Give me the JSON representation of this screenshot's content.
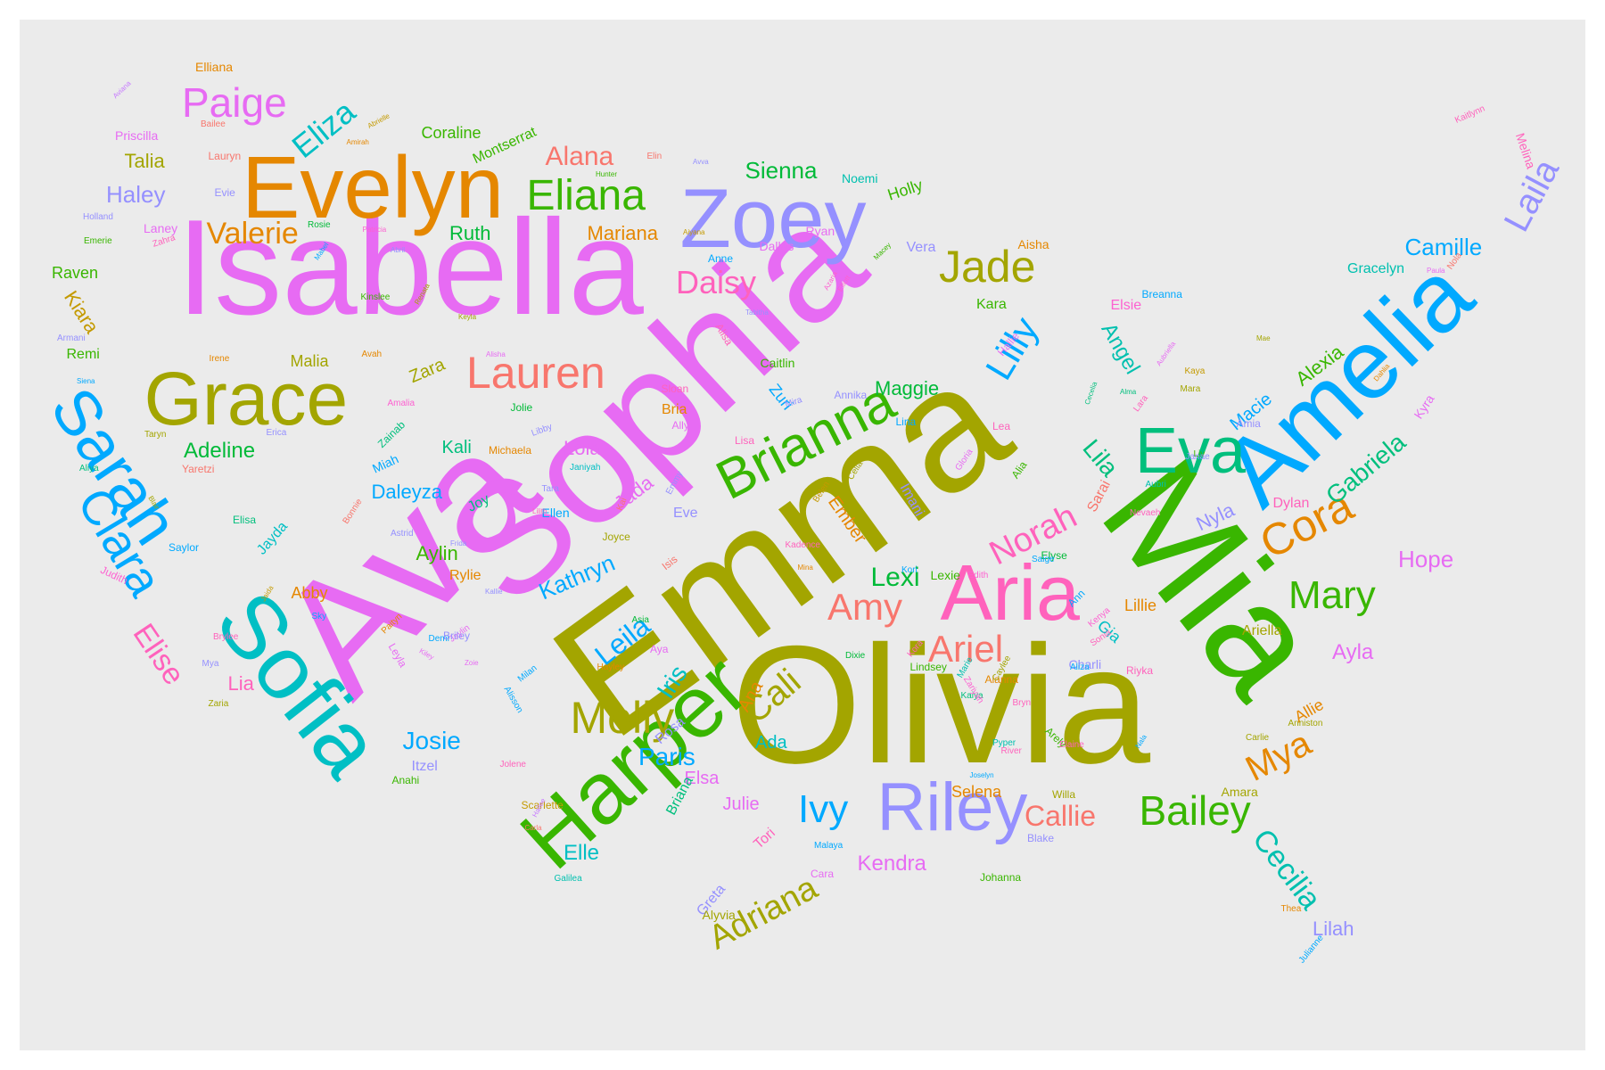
{
  "colors": {
    "panel": "#ebebeb",
    "palette": {
      "pink": "#f8766d",
      "orange": "#e58700",
      "olive": "#a3a500",
      "green": "#39b600",
      "teal": "#00bf7d",
      "cyan": "#00bfc4",
      "blue": "#00b0f6",
      "lavender": "#9590ff",
      "magenta": "#e76bf3",
      "hotpink": "#ff62bc",
      "gold": "#c49a00",
      "emerald": "#00ba38",
      "aqua": "#00c0af",
      "sky": "#00a9ff",
      "purple": "#c77cff",
      "rose": "#fd61d1"
    }
  },
  "words": [
    {
      "text": "Olivia",
      "color": "olive"
    },
    {
      "text": "Emma",
      "color": "olive"
    },
    {
      "text": "Ava",
      "color": "magenta"
    },
    {
      "text": "Sophia",
      "color": "magenta"
    },
    {
      "text": "Isabella",
      "color": "magenta"
    },
    {
      "text": "Mia",
      "color": "green"
    },
    {
      "text": "Amelia",
      "color": "sky"
    },
    {
      "text": "Harper",
      "color": "green"
    },
    {
      "text": "Evelyn",
      "color": "orange"
    },
    {
      "text": "Sofia",
      "color": "cyan"
    },
    {
      "text": "Zoey",
      "color": "lavender"
    },
    {
      "text": "Aria",
      "color": "hotpink"
    },
    {
      "text": "Grace",
      "color": "olive"
    },
    {
      "text": "Riley",
      "color": "lavender"
    },
    {
      "text": "Sarah",
      "color": "sky"
    },
    {
      "text": "Eva",
      "color": "teal"
    },
    {
      "text": "Brianna",
      "color": "green"
    },
    {
      "text": "Lauren",
      "color": "pink"
    },
    {
      "text": "Eliana",
      "color": "green"
    },
    {
      "text": "Jade",
      "color": "olive"
    },
    {
      "text": "Clara",
      "color": "sky"
    },
    {
      "text": "Molly",
      "color": "olive"
    },
    {
      "text": "Bailey",
      "color": "green"
    },
    {
      "text": "Cora",
      "color": "orange"
    },
    {
      "text": "Laila",
      "color": "lavender"
    },
    {
      "text": "Mary",
      "color": "green"
    },
    {
      "text": "Norah",
      "color": "hotpink"
    },
    {
      "text": "Paige",
      "color": "magenta"
    },
    {
      "text": "Ariel",
      "color": "pink"
    },
    {
      "text": "Amy",
      "color": "pink"
    },
    {
      "text": "Lilly",
      "color": "sky"
    },
    {
      "text": "Daisy",
      "color": "hotpink"
    },
    {
      "text": "Cali",
      "color": "olive"
    },
    {
      "text": "Mya",
      "color": "orange"
    },
    {
      "text": "Ivy",
      "color": "sky"
    },
    {
      "text": "Elise",
      "color": "hotpink"
    },
    {
      "text": "Cecilia",
      "color": "aqua"
    },
    {
      "text": "Adriana",
      "color": "olive"
    },
    {
      "text": "Eliza",
      "color": "cyan"
    },
    {
      "text": "Camille",
      "color": "sky"
    },
    {
      "text": "Valerie",
      "color": "orange"
    },
    {
      "text": "Alana",
      "color": "pink"
    },
    {
      "text": "Sienna",
      "color": "emerald"
    },
    {
      "text": "Leila",
      "color": "sky"
    },
    {
      "text": "Kathryn",
      "color": "sky"
    },
    {
      "text": "Gabriela",
      "color": "teal"
    },
    {
      "text": "Callie",
      "color": "pink"
    },
    {
      "text": "Lexi",
      "color": "emerald"
    },
    {
      "text": "Josie",
      "color": "sky"
    },
    {
      "text": "Iris",
      "color": "cyan"
    },
    {
      "text": "Paris",
      "color": "sky"
    },
    {
      "text": "Kendra",
      "color": "magenta"
    },
    {
      "text": "Adeline",
      "color": "emerald"
    },
    {
      "text": "Haley",
      "color": "lavender"
    },
    {
      "text": "Talia",
      "color": "olive"
    },
    {
      "text": "Maggie",
      "color": "emerald"
    },
    {
      "text": "Ruth",
      "color": "emerald"
    },
    {
      "text": "Daleyza",
      "color": "sky"
    },
    {
      "text": "Hope",
      "color": "magenta"
    },
    {
      "text": "Lila",
      "color": "teal"
    },
    {
      "text": "Angel",
      "color": "aqua"
    },
    {
      "text": "Alexia",
      "color": "green"
    },
    {
      "text": "Macie",
      "color": "sky"
    },
    {
      "text": "Ayla",
      "color": "magenta"
    },
    {
      "text": "Selena",
      "color": "orange"
    },
    {
      "text": "Lilah",
      "color": "lavender"
    },
    {
      "text": "Elle",
      "color": "cyan"
    },
    {
      "text": "Nyla",
      "color": "lavender"
    },
    {
      "text": "Jada",
      "color": "magenta"
    },
    {
      "text": "Lola",
      "color": "magenta"
    },
    {
      "text": "Gia",
      "color": "cyan"
    },
    {
      "text": "Allie",
      "color": "orange"
    },
    {
      "text": "Kiara",
      "color": "gold"
    },
    {
      "text": "Ana",
      "color": "orange"
    },
    {
      "text": "Ada",
      "color": "cyan"
    },
    {
      "text": "Lia",
      "color": "hotpink"
    },
    {
      "text": "Elsa",
      "color": "magenta"
    },
    {
      "text": "Julie",
      "color": "magenta"
    },
    {
      "text": "Malia",
      "color": "olive"
    },
    {
      "text": "Mariana",
      "color": "orange"
    },
    {
      "text": "Aylin",
      "color": "green"
    },
    {
      "text": "Vera",
      "color": "lavender"
    },
    {
      "text": "Kara",
      "color": "green"
    },
    {
      "text": "Zara",
      "color": "olive"
    },
    {
      "text": "Kali",
      "color": "teal"
    },
    {
      "text": "Itzel",
      "color": "lavender"
    },
    {
      "text": "Gracelyn",
      "color": "aqua"
    },
    {
      "text": "Holly",
      "color": "green"
    },
    {
      "text": "Elsie",
      "color": "rose"
    },
    {
      "text": "Raven",
      "color": "green"
    },
    {
      "text": "Abby",
      "color": "orange"
    },
    {
      "text": "Jayda",
      "color": "cyan"
    },
    {
      "text": "Zuri",
      "color": "sky"
    },
    {
      "text": "Ember",
      "color": "orange"
    },
    {
      "text": "Rylie",
      "color": "orange"
    },
    {
      "text": "Bria",
      "color": "orange"
    },
    {
      "text": "Lillie",
      "color": "orange"
    },
    {
      "text": "Sarai",
      "color": "pink"
    },
    {
      "text": "Joy",
      "color": "teal"
    },
    {
      "text": "Eve",
      "color": "lavender"
    },
    {
      "text": "Imani",
      "color": "lavender"
    },
    {
      "text": "Briana",
      "color": "teal"
    },
    {
      "text": "Rosa",
      "color": "lavender"
    },
    {
      "text": "Tori",
      "color": "hotpink"
    },
    {
      "text": "Dylan",
      "color": "hotpink"
    },
    {
      "text": "Ariella",
      "color": "olive"
    },
    {
      "text": "Kyra",
      "color": "magenta"
    },
    {
      "text": "Amara",
      "color": "olive"
    },
    {
      "text": "Willa",
      "color": "olive"
    },
    {
      "text": "Blake",
      "color": "lavender"
    },
    {
      "text": "Johanna",
      "color": "green"
    },
    {
      "text": "Greta",
      "color": "lavender"
    },
    {
      "text": "Cara",
      "color": "magenta"
    },
    {
      "text": "Lexie",
      "color": "green"
    },
    {
      "text": "Charli",
      "color": "lavender"
    },
    {
      "text": "Alanna",
      "color": "orange"
    },
    {
      "text": "Lindsey",
      "color": "green"
    },
    {
      "text": "Elyse",
      "color": "emerald"
    },
    {
      "text": "Anahi",
      "color": "green"
    },
    {
      "text": "Remi",
      "color": "green"
    },
    {
      "text": "Ellen",
      "color": "sky"
    },
    {
      "text": "Yaretzi",
      "color": "pink"
    },
    {
      "text": "Michaela",
      "color": "orange"
    },
    {
      "text": "Janiyah",
      "color": "cyan"
    },
    {
      "text": "Miah",
      "color": "sky"
    },
    {
      "text": "Saylor",
      "color": "sky"
    },
    {
      "text": "Elisa",
      "color": "teal"
    },
    {
      "text": "Irene",
      "color": "orange"
    },
    {
      "text": "Coraline",
      "color": "green"
    },
    {
      "text": "Montserrat",
      "color": "green"
    },
    {
      "text": "Elliana",
      "color": "orange"
    },
    {
      "text": "Priscilla",
      "color": "magenta"
    },
    {
      "text": "Lauryn",
      "color": "pink"
    },
    {
      "text": "Evie",
      "color": "lavender"
    },
    {
      "text": "Laney",
      "color": "magenta"
    },
    {
      "text": "Noemi",
      "color": "aqua"
    },
    {
      "text": "Ryan",
      "color": "magenta"
    },
    {
      "text": "Aisha",
      "color": "orange"
    },
    {
      "text": "Dallas",
      "color": "magenta"
    },
    {
      "text": "Anne",
      "color": "sky"
    },
    {
      "text": "Caitlin",
      "color": "green"
    },
    {
      "text": "Annika",
      "color": "lavender"
    },
    {
      "text": "Lea",
      "color": "hotpink"
    },
    {
      "text": "Lina",
      "color": "sky"
    },
    {
      "text": "Gloria",
      "color": "magenta"
    },
    {
      "text": "Alia",
      "color": "green"
    },
    {
      "text": "Lisa",
      "color": "hotpink"
    },
    {
      "text": "Ally",
      "color": "magenta"
    },
    {
      "text": "Sloan",
      "color": "hotpink"
    },
    {
      "text": "Jolie",
      "color": "emerald"
    },
    {
      "text": "Libby",
      "color": "lavender"
    },
    {
      "text": "Tara",
      "color": "lavender"
    },
    {
      "text": "Bailee",
      "color": "pink"
    },
    {
      "text": "Elin",
      "color": "pink"
    },
    {
      "text": "Avva",
      "color": "lavender"
    },
    {
      "text": "Hunter",
      "color": "green"
    },
    {
      "text": "Amirah",
      "color": "orange"
    },
    {
      "text": "Abrielle",
      "color": "gold"
    },
    {
      "text": "Holland",
      "color": "lavender"
    },
    {
      "text": "Emerie",
      "color": "green"
    },
    {
      "text": "Zahra",
      "color": "hotpink"
    },
    {
      "text": "Rosie",
      "color": "emerald"
    },
    {
      "text": "Mabel",
      "color": "sky"
    },
    {
      "text": "Patricia",
      "color": "rose"
    },
    {
      "text": "Abril",
      "color": "lavender"
    },
    {
      "text": "Aiyana",
      "color": "gold"
    },
    {
      "text": "Macey",
      "color": "green"
    },
    {
      "text": "Tabitha",
      "color": "lavender"
    },
    {
      "text": "Azaria",
      "color": "rose"
    },
    {
      "text": "Elliott",
      "color": "rose"
    },
    {
      "text": "Kinslee",
      "color": "green"
    },
    {
      "text": "Renata",
      "color": "olive"
    },
    {
      "text": "Keyla",
      "color": "olive"
    },
    {
      "text": "Avah",
      "color": "orange"
    },
    {
      "text": "Alisha",
      "color": "magenta"
    },
    {
      "text": "Armani",
      "color": "lavender"
    },
    {
      "text": "Siena",
      "color": "sky"
    },
    {
      "text": "Amalia",
      "color": "rose"
    },
    {
      "text": "Erica",
      "color": "lavender"
    },
    {
      "text": "Zainab",
      "color": "teal"
    },
    {
      "text": "Taryn",
      "color": "olive"
    },
    {
      "text": "Aliya",
      "color": "teal"
    },
    {
      "text": "Blair",
      "color": "olive"
    },
    {
      "text": "Bonnie",
      "color": "pink"
    },
    {
      "text": "Lilith",
      "color": "hotpink"
    },
    {
      "text": "Astrid",
      "color": "lavender"
    },
    {
      "text": "Frida",
      "color": "lavender"
    },
    {
      "text": "Kallie",
      "color": "lavender"
    },
    {
      "text": "Judith",
      "color": "rose"
    },
    {
      "text": "Sky",
      "color": "sky"
    },
    {
      "text": "Jaida",
      "color": "gold"
    },
    {
      "text": "Paityn",
      "color": "orange"
    },
    {
      "text": "Brylee",
      "color": "hotpink"
    },
    {
      "text": "Jaylin",
      "color": "magenta"
    },
    {
      "text": "Mya",
      "color": "lavender"
    },
    {
      "text": "Demi",
      "color": "sky"
    },
    {
      "text": "Zaria",
      "color": "olive"
    },
    {
      "text": "Leyla",
      "color": "magenta"
    },
    {
      "text": "Briley",
      "color": "lavender"
    },
    {
      "text": "Kiley",
      "color": "magenta"
    },
    {
      "text": "Zoie",
      "color": "magenta"
    },
    {
      "text": "Alisson",
      "color": "sky"
    },
    {
      "text": "Milan",
      "color": "sky"
    },
    {
      "text": "Hayley",
      "color": "orange"
    },
    {
      "text": "Jolene",
      "color": "hotpink"
    },
    {
      "text": "Scarlette",
      "color": "gold"
    },
    {
      "text": "Hailee",
      "color": "purple"
    },
    {
      "text": "Carla",
      "color": "pink"
    },
    {
      "text": "Galilea",
      "color": "aqua"
    },
    {
      "text": "Alyvia",
      "color": "olive"
    },
    {
      "text": "Malaya",
      "color": "sky"
    },
    {
      "text": "Kaiya",
      "color": "teal"
    },
    {
      "text": "Zariyah",
      "color": "rose"
    },
    {
      "text": "Pyper",
      "color": "aqua"
    },
    {
      "text": "River",
      "color": "hotpink"
    },
    {
      "text": "Joselyn",
      "color": "sky"
    },
    {
      "text": "Arely",
      "color": "green"
    },
    {
      "text": "Elaine",
      "color": "hotpink"
    },
    {
      "text": "Riyka",
      "color": "hotpink"
    },
    {
      "text": "Nala",
      "color": "sky"
    },
    {
      "text": "Carlie",
      "color": "olive"
    },
    {
      "text": "Anniston",
      "color": "olive"
    },
    {
      "text": "Thea",
      "color": "orange"
    },
    {
      "text": "Julianne",
      "color": "sky"
    },
    {
      "text": "Aliza",
      "color": "sky"
    },
    {
      "text": "Sonia",
      "color": "hotpink"
    },
    {
      "text": "Kenya",
      "color": "rose"
    },
    {
      "text": "Ann",
      "color": "sky"
    },
    {
      "text": "Saige",
      "color": "sky"
    },
    {
      "text": "Edith",
      "color": "rose"
    },
    {
      "text": "Kori",
      "color": "sky"
    },
    {
      "text": "Nevaeh",
      "color": "hotpink"
    },
    {
      "text": "Liv",
      "color": "green"
    },
    {
      "text": "Aubri",
      "color": "aqua"
    },
    {
      "text": "Janae",
      "color": "lavender"
    },
    {
      "text": "Lara",
      "color": "hotpink"
    },
    {
      "text": "Kaya",
      "color": "gold"
    },
    {
      "text": "Mara",
      "color": "olive"
    },
    {
      "text": "Amia",
      "color": "lavender"
    },
    {
      "text": "Mae",
      "color": "olive"
    },
    {
      "text": "Dahlia",
      "color": "orange"
    },
    {
      "text": "Nola",
      "color": "pink"
    },
    {
      "text": "Paula",
      "color": "magenta"
    },
    {
      "text": "Kaitlynn",
      "color": "hotpink"
    },
    {
      "text": "Melina",
      "color": "hotpink"
    },
    {
      "text": "Breanna",
      "color": "sky"
    },
    {
      "text": "Aubriella",
      "color": "magenta"
    },
    {
      "text": "Alma",
      "color": "teal"
    },
    {
      "text": "Cecelia",
      "color": "teal"
    },
    {
      "text": "Hallie",
      "color": "magenta"
    },
    {
      "text": "Celia",
      "color": "olive"
    },
    {
      "text": "Belen",
      "color": "gold"
    },
    {
      "text": "Kadence",
      "color": "hotpink"
    },
    {
      "text": "Mina",
      "color": "orange"
    },
    {
      "text": "Dixie",
      "color": "emerald"
    },
    {
      "text": "Kora",
      "color": "hotpink"
    },
    {
      "text": "Marie",
      "color": "aqua"
    },
    {
      "text": "Bryn",
      "color": "hotpink"
    },
    {
      "text": "Caylee",
      "color": "olive"
    },
    {
      "text": "Joyce",
      "color": "olive"
    },
    {
      "text": "Asia",
      "color": "emerald"
    },
    {
      "text": "Aya",
      "color": "magenta"
    },
    {
      "text": "Isis",
      "color": "pink"
    },
    {
      "text": "Kai",
      "color": "pink"
    },
    {
      "text": "Emmy",
      "color": "lavender"
    },
    {
      "text": "Mira",
      "color": "lavender"
    },
    {
      "text": "Alisa",
      "color": "hotpink"
    },
    {
      "text": "Aviana",
      "color": "purple"
    },
    {
      "text": "Lorelai",
      "color": "lavender"
    },
    {
      "text": "Leona",
      "color": "pink"
    },
    {
      "text": "Lilia",
      "color": "sky"
    }
  ]
}
